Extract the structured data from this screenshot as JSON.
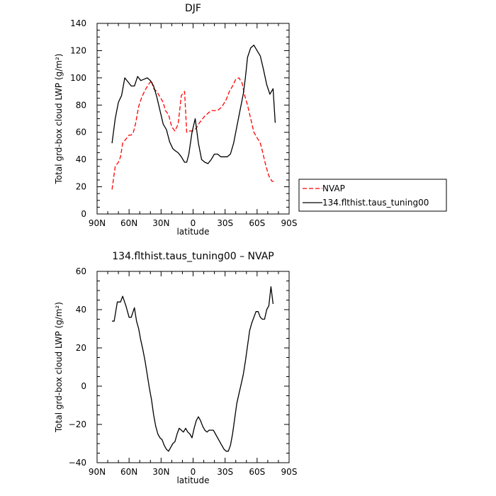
{
  "chart_data": [
    {
      "type": "line",
      "title": "DJF",
      "xlabel": "latitude",
      "ylabel": "Total grd-box cloud LWP (g/m²)",
      "xlim": [
        90,
        -90
      ],
      "ylim": [
        0,
        140
      ],
      "xticks": [
        90,
        60,
        30,
        0,
        -30,
        -60,
        -90
      ],
      "xtick_labels": [
        "90N",
        "60N",
        "30N",
        "0",
        "30S",
        "60S",
        "90S"
      ],
      "yticks": [
        0,
        20,
        40,
        60,
        80,
        100,
        120,
        140
      ],
      "ytick_labels": [
        "0",
        "20",
        "40",
        "60",
        "80",
        "100",
        "120",
        "140"
      ],
      "grid": false,
      "legend": "right",
      "series": [
        {
          "name": "NVAP",
          "color": "#ff0000",
          "dash": "dashed",
          "x": [
            76,
            73,
            70,
            68,
            66,
            63,
            60,
            58,
            56,
            54,
            51,
            48,
            45,
            42,
            39,
            37,
            34,
            31,
            28,
            26,
            23,
            20,
            17,
            14,
            11,
            8,
            6,
            3,
            0,
            -3,
            -6,
            -9,
            -11,
            -14,
            -17,
            -20,
            -23,
            -26,
            -28,
            -31,
            -34,
            -37,
            -40,
            -43,
            -46,
            -48,
            -51,
            -54,
            -57,
            -60,
            -63,
            -65,
            -68,
            -71,
            -74,
            -76
          ],
          "y": [
            18,
            35,
            38,
            42,
            52,
            55,
            58,
            58,
            60,
            66,
            79,
            86,
            91,
            95,
            98,
            92,
            90,
            86,
            82,
            76,
            73,
            64,
            61,
            66,
            87,
            90,
            60,
            61,
            61,
            63,
            67,
            70,
            72,
            74,
            76,
            76,
            76,
            78,
            80,
            84,
            90,
            94,
            99,
            100,
            96,
            88,
            80,
            70,
            60,
            56,
            52,
            46,
            36,
            28,
            24,
            24
          ]
        },
        {
          "name": "134.flthist.taus_tuning00",
          "color": "#000000",
          "dash": "solid",
          "x": [
            76,
            73,
            70,
            67,
            64,
            61,
            58,
            55,
            52,
            49,
            46,
            43,
            40,
            37,
            34,
            31,
            28,
            25,
            22,
            19,
            16,
            14,
            11,
            8,
            6,
            4,
            1,
            -2,
            -5,
            -8,
            -11,
            -14,
            -17,
            -20,
            -23,
            -26,
            -29,
            -32,
            -35,
            -38,
            -41,
            -44,
            -47,
            -49,
            -51,
            -54,
            -57,
            -60,
            -63,
            -66,
            -69,
            -72,
            -75,
            -77
          ],
          "y": [
            52,
            70,
            82,
            87,
            100,
            97,
            94,
            94,
            101,
            98,
            99,
            100,
            98,
            94,
            86,
            76,
            66,
            62,
            53,
            48,
            46,
            45,
            42,
            38,
            38,
            44,
            60,
            70,
            52,
            40,
            38,
            37,
            40,
            44,
            44,
            42,
            42,
            42,
            44,
            52,
            64,
            76,
            88,
            100,
            115,
            122,
            124,
            120,
            116,
            106,
            95,
            88,
            92,
            67
          ]
        }
      ]
    },
    {
      "type": "line",
      "title": "134.flthist.taus_tuning00 – NVAP",
      "xlabel": "latitude",
      "ylabel": "Total grd-box cloud LWP (g/m²)",
      "xlim": [
        90,
        -90
      ],
      "ylim": [
        -40,
        60
      ],
      "xticks": [
        90,
        60,
        30,
        0,
        -30,
        -60,
        -90
      ],
      "xtick_labels": [
        "90N",
        "60N",
        "30N",
        "0",
        "30S",
        "60S",
        "90S"
      ],
      "yticks": [
        -40,
        -20,
        0,
        20,
        40,
        60
      ],
      "ytick_labels": [
        "−40",
        "−20",
        "0",
        "20",
        "40",
        "60"
      ],
      "grid": false,
      "series": [
        {
          "color": "#000000",
          "dash": "solid",
          "x": [
            76,
            74,
            71,
            68,
            66,
            63,
            60,
            58,
            55,
            53,
            51,
            49,
            47,
            45,
            43,
            41,
            39,
            37,
            35,
            33,
            31,
            29,
            27,
            25,
            23,
            21,
            19,
            17,
            15,
            13,
            11,
            9,
            7,
            5,
            3,
            1,
            -1,
            -3,
            -5,
            -7,
            -9,
            -11,
            -13,
            -15,
            -17,
            -19,
            -21,
            -23,
            -25,
            -27,
            -29,
            -31,
            -33,
            -35,
            -37,
            -39,
            -41,
            -43,
            -45,
            -47,
            -49,
            -51,
            -53,
            -55,
            -57,
            -59,
            -61,
            -63,
            -65,
            -67,
            -69,
            -71,
            -73,
            -75
          ],
          "y": [
            34,
            34,
            44,
            44,
            47,
            42,
            36,
            36,
            41,
            34,
            30,
            24,
            19,
            13,
            6,
            -1,
            -7,
            -15,
            -21,
            -25,
            -27,
            -28,
            -31,
            -33,
            -34,
            -32,
            -30,
            -29,
            -25,
            -22,
            -23,
            -24,
            -22,
            -24,
            -25,
            -27,
            -22,
            -18,
            -16,
            -18,
            -21,
            -23,
            -24,
            -23,
            -23,
            -23,
            -25,
            -27,
            -29,
            -31,
            -33,
            -34,
            -34,
            -31,
            -25,
            -17,
            -9,
            -4,
            1,
            6,
            13,
            21,
            29,
            33,
            36,
            39,
            39,
            36,
            35,
            35,
            40,
            42,
            52,
            43
          ]
        }
      ]
    }
  ]
}
